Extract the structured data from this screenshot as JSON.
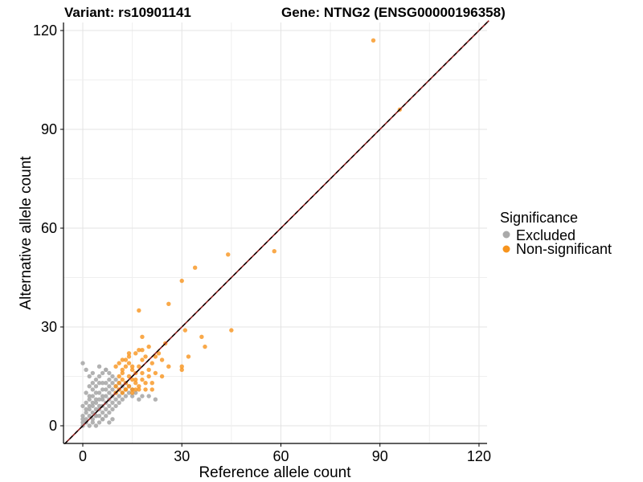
{
  "chart_data": {
    "type": "scatter",
    "title_left": "Variant: rs10901141",
    "title_right": "Gene: NTNG2 (ENSG00000196358)",
    "xlabel": "Reference allele count",
    "ylabel": "Alternative allele count",
    "xlim": [
      -6,
      123
    ],
    "ylim": [
      -5,
      123
    ],
    "xticks": [
      0,
      30,
      60,
      90,
      120
    ],
    "yticks": [
      0,
      30,
      60,
      90,
      120
    ],
    "grid": true,
    "reference_line": {
      "type": "identity",
      "slope": 1,
      "intercept": 0,
      "style": "dashed"
    },
    "legend": {
      "title": "Significance",
      "placement": "right",
      "entries": [
        {
          "label": "Excluded",
          "color": "#aaaaaa"
        },
        {
          "label": "Non-significant",
          "color": "#f7941d"
        }
      ]
    },
    "series": [
      {
        "name": "Excluded",
        "color": "#aaaaaa",
        "x": [
          0,
          0,
          0,
          0,
          0,
          1,
          1,
          1,
          1,
          1,
          1,
          2,
          2,
          2,
          2,
          2,
          2,
          2,
          3,
          3,
          3,
          3,
          3,
          3,
          3,
          3,
          4,
          4,
          4,
          4,
          4,
          4,
          4,
          4,
          5,
          5,
          5,
          5,
          5,
          5,
          5,
          5,
          6,
          6,
          6,
          6,
          6,
          6,
          6,
          6,
          7,
          7,
          7,
          7,
          7,
          7,
          7,
          8,
          8,
          8,
          8,
          8,
          8,
          8,
          9,
          9,
          9,
          9,
          9,
          9,
          10,
          10,
          10,
          10,
          10,
          11,
          11,
          11,
          11,
          12,
          12,
          12,
          13,
          13,
          13,
          14,
          14,
          15,
          15,
          16,
          17,
          18,
          0,
          1,
          2,
          3,
          5,
          7,
          4,
          6,
          8,
          9,
          20,
          22
        ],
        "y": [
          0,
          1,
          2,
          3,
          6,
          1,
          2,
          4,
          5,
          7,
          10,
          0,
          3,
          5,
          6,
          8,
          9,
          12,
          1,
          2,
          4,
          6,
          7,
          9,
          11,
          13,
          0,
          3,
          5,
          7,
          8,
          10,
          12,
          14,
          1,
          3,
          5,
          6,
          8,
          10,
          13,
          15,
          2,
          4,
          6,
          8,
          9,
          11,
          13,
          16,
          3,
          5,
          7,
          9,
          11,
          13,
          17,
          4,
          6,
          8,
          10,
          12,
          14,
          16,
          5,
          7,
          9,
          11,
          13,
          15,
          6,
          8,
          10,
          12,
          14,
          7,
          9,
          11,
          13,
          8,
          10,
          12,
          9,
          11,
          13,
          10,
          12,
          9,
          11,
          10,
          8,
          9,
          19,
          17,
          15,
          16,
          18,
          17,
          3,
          2,
          1,
          2,
          9,
          8
        ]
      },
      {
        "name": "Non-significant",
        "color": "#f7941d",
        "x": [
          10,
          10,
          11,
          11,
          11,
          12,
          12,
          12,
          13,
          13,
          13,
          14,
          14,
          14,
          15,
          15,
          15,
          16,
          16,
          16,
          17,
          17,
          18,
          18,
          19,
          19,
          20,
          20,
          21,
          22,
          23,
          24,
          10,
          12,
          14,
          16,
          18,
          20,
          22,
          25,
          13,
          15,
          17,
          19,
          21,
          11,
          13,
          15,
          17,
          12,
          14,
          16,
          18,
          26,
          30,
          30,
          31,
          32,
          36,
          37,
          44,
          45,
          58,
          88,
          96,
          17,
          26,
          30,
          34,
          21,
          24,
          18
        ],
        "y": [
          10,
          12,
          11,
          13,
          15,
          10,
          14,
          16,
          11,
          13,
          18,
          12,
          15,
          19,
          10,
          14,
          17,
          11,
          13,
          16,
          12,
          18,
          14,
          20,
          13,
          21,
          15,
          17,
          19,
          16,
          22,
          20,
          18,
          20,
          21,
          22,
          23,
          24,
          21,
          25,
          11,
          11,
          11,
          11,
          11,
          19,
          20,
          18,
          23,
          17,
          22,
          14,
          16,
          18,
          18,
          17,
          29,
          21,
          27,
          24,
          52,
          29,
          53,
          117,
          96,
          35,
          37,
          44,
          48,
          13,
          15,
          27
        ]
      }
    ]
  }
}
